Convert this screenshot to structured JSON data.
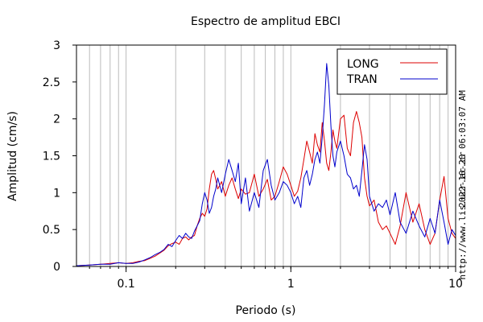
{
  "chart_data": {
    "type": "line",
    "title": "Espectro de amplitud EBCI",
    "xlabel": "Periodo (s)",
    "ylabel": "Amplitud (cm/s)",
    "xscale": "log",
    "xlim": [
      0.05,
      10
    ],
    "ylim": [
      0,
      3
    ],
    "grid": "vertical, log-spaced",
    "legend_position": "top-right",
    "y_ticks": [
      "0",
      "0.5",
      "1",
      "1.5",
      "2",
      "2.5",
      "3"
    ],
    "x_ticks": [
      "0.1",
      "1",
      "10"
    ],
    "series": [
      {
        "name": "LONG",
        "color": "#dd0000",
        "x": [
          0.05,
          0.06,
          0.07,
          0.08,
          0.09,
          0.1,
          0.11,
          0.12,
          0.13,
          0.14,
          0.15,
          0.16,
          0.17,
          0.18,
          0.19,
          0.2,
          0.21,
          0.22,
          0.23,
          0.24,
          0.25,
          0.26,
          0.27,
          0.28,
          0.29,
          0.3,
          0.31,
          0.32,
          0.33,
          0.34,
          0.35,
          0.36,
          0.38,
          0.4,
          0.42,
          0.44,
          0.46,
          0.48,
          0.5,
          0.53,
          0.56,
          0.6,
          0.64,
          0.68,
          0.72,
          0.76,
          0.8,
          0.85,
          0.9,
          0.95,
          1.0,
          1.05,
          1.1,
          1.15,
          1.2,
          1.25,
          1.3,
          1.35,
          1.4,
          1.45,
          1.5,
          1.55,
          1.6,
          1.65,
          1.7,
          1.75,
          1.8,
          1.85,
          1.9,
          2.0,
          2.1,
          2.2,
          2.3,
          2.4,
          2.5,
          2.6,
          2.7,
          2.8,
          2.9,
          3.0,
          3.2,
          3.4,
          3.6,
          3.8,
          4.0,
          4.3,
          4.6,
          5.0,
          5.5,
          6.0,
          6.5,
          7.0,
          7.5,
          8.0,
          8.5,
          9.0,
          9.5,
          10.0
        ],
        "values": [
          0.01,
          0.02,
          0.03,
          0.04,
          0.05,
          0.04,
          0.05,
          0.07,
          0.08,
          0.11,
          0.14,
          0.18,
          0.22,
          0.28,
          0.31,
          0.33,
          0.3,
          0.38,
          0.4,
          0.36,
          0.4,
          0.42,
          0.55,
          0.65,
          0.72,
          0.68,
          0.78,
          1.05,
          1.25,
          1.3,
          1.18,
          1.05,
          1.15,
          0.95,
          1.1,
          1.2,
          1.05,
          0.92,
          1.05,
          0.98,
          1.0,
          1.25,
          0.95,
          1.05,
          1.18,
          0.9,
          0.95,
          1.15,
          1.35,
          1.25,
          1.1,
          0.95,
          1.02,
          1.2,
          1.45,
          1.7,
          1.55,
          1.4,
          1.8,
          1.65,
          1.55,
          1.95,
          1.7,
          1.4,
          1.3,
          1.55,
          1.85,
          1.7,
          1.6,
          2.0,
          2.05,
          1.6,
          1.5,
          1.95,
          2.1,
          1.95,
          1.75,
          1.2,
          0.95,
          0.82,
          0.9,
          0.6,
          0.5,
          0.55,
          0.45,
          0.3,
          0.55,
          1.0,
          0.6,
          0.85,
          0.5,
          0.3,
          0.45,
          0.9,
          1.22,
          0.65,
          0.45,
          0.38
        ]
      },
      {
        "name": "TRAN",
        "color": "#0000cc",
        "x": [
          0.05,
          0.06,
          0.07,
          0.08,
          0.09,
          0.1,
          0.11,
          0.12,
          0.13,
          0.14,
          0.15,
          0.16,
          0.17,
          0.18,
          0.19,
          0.2,
          0.21,
          0.22,
          0.23,
          0.24,
          0.25,
          0.26,
          0.27,
          0.28,
          0.29,
          0.3,
          0.31,
          0.32,
          0.33,
          0.34,
          0.35,
          0.36,
          0.38,
          0.4,
          0.42,
          0.44,
          0.46,
          0.48,
          0.5,
          0.53,
          0.56,
          0.6,
          0.64,
          0.68,
          0.72,
          0.76,
          0.8,
          0.85,
          0.9,
          0.95,
          1.0,
          1.05,
          1.1,
          1.15,
          1.2,
          1.25,
          1.3,
          1.35,
          1.4,
          1.45,
          1.5,
          1.55,
          1.6,
          1.65,
          1.7,
          1.75,
          1.8,
          1.85,
          1.9,
          2.0,
          2.1,
          2.2,
          2.3,
          2.4,
          2.5,
          2.6,
          2.7,
          2.8,
          2.9,
          3.0,
          3.2,
          3.4,
          3.6,
          3.8,
          4.0,
          4.3,
          4.6,
          5.0,
          5.5,
          6.0,
          6.5,
          7.0,
          7.5,
          8.0,
          8.5,
          9.0,
          9.5,
          10.0
        ],
        "values": [
          0.01,
          0.02,
          0.03,
          0.03,
          0.05,
          0.04,
          0.04,
          0.06,
          0.09,
          0.12,
          0.16,
          0.19,
          0.23,
          0.3,
          0.27,
          0.35,
          0.42,
          0.38,
          0.45,
          0.4,
          0.38,
          0.48,
          0.55,
          0.62,
          0.85,
          1.0,
          0.9,
          0.72,
          0.8,
          0.95,
          1.05,
          1.2,
          1.0,
          1.25,
          1.45,
          1.3,
          1.15,
          1.4,
          0.85,
          1.2,
          0.75,
          1.0,
          0.8,
          1.3,
          1.45,
          1.1,
          0.9,
          1.0,
          1.15,
          1.1,
          1.0,
          0.85,
          0.95,
          0.8,
          1.2,
          1.3,
          1.1,
          1.25,
          1.45,
          1.55,
          1.4,
          1.75,
          2.2,
          2.75,
          2.45,
          1.9,
          1.5,
          1.35,
          1.55,
          1.7,
          1.5,
          1.25,
          1.2,
          1.05,
          1.1,
          0.95,
          1.3,
          1.65,
          1.45,
          0.95,
          0.75,
          0.85,
          0.8,
          0.9,
          0.7,
          1.0,
          0.6,
          0.45,
          0.75,
          0.55,
          0.4,
          0.65,
          0.45,
          0.9,
          0.6,
          0.3,
          0.5,
          0.42
        ]
      }
    ],
    "side_labels": [
      "2022-10-20 06:03:07 AM",
      "http://www.lis.ucr.ac.cr"
    ]
  }
}
